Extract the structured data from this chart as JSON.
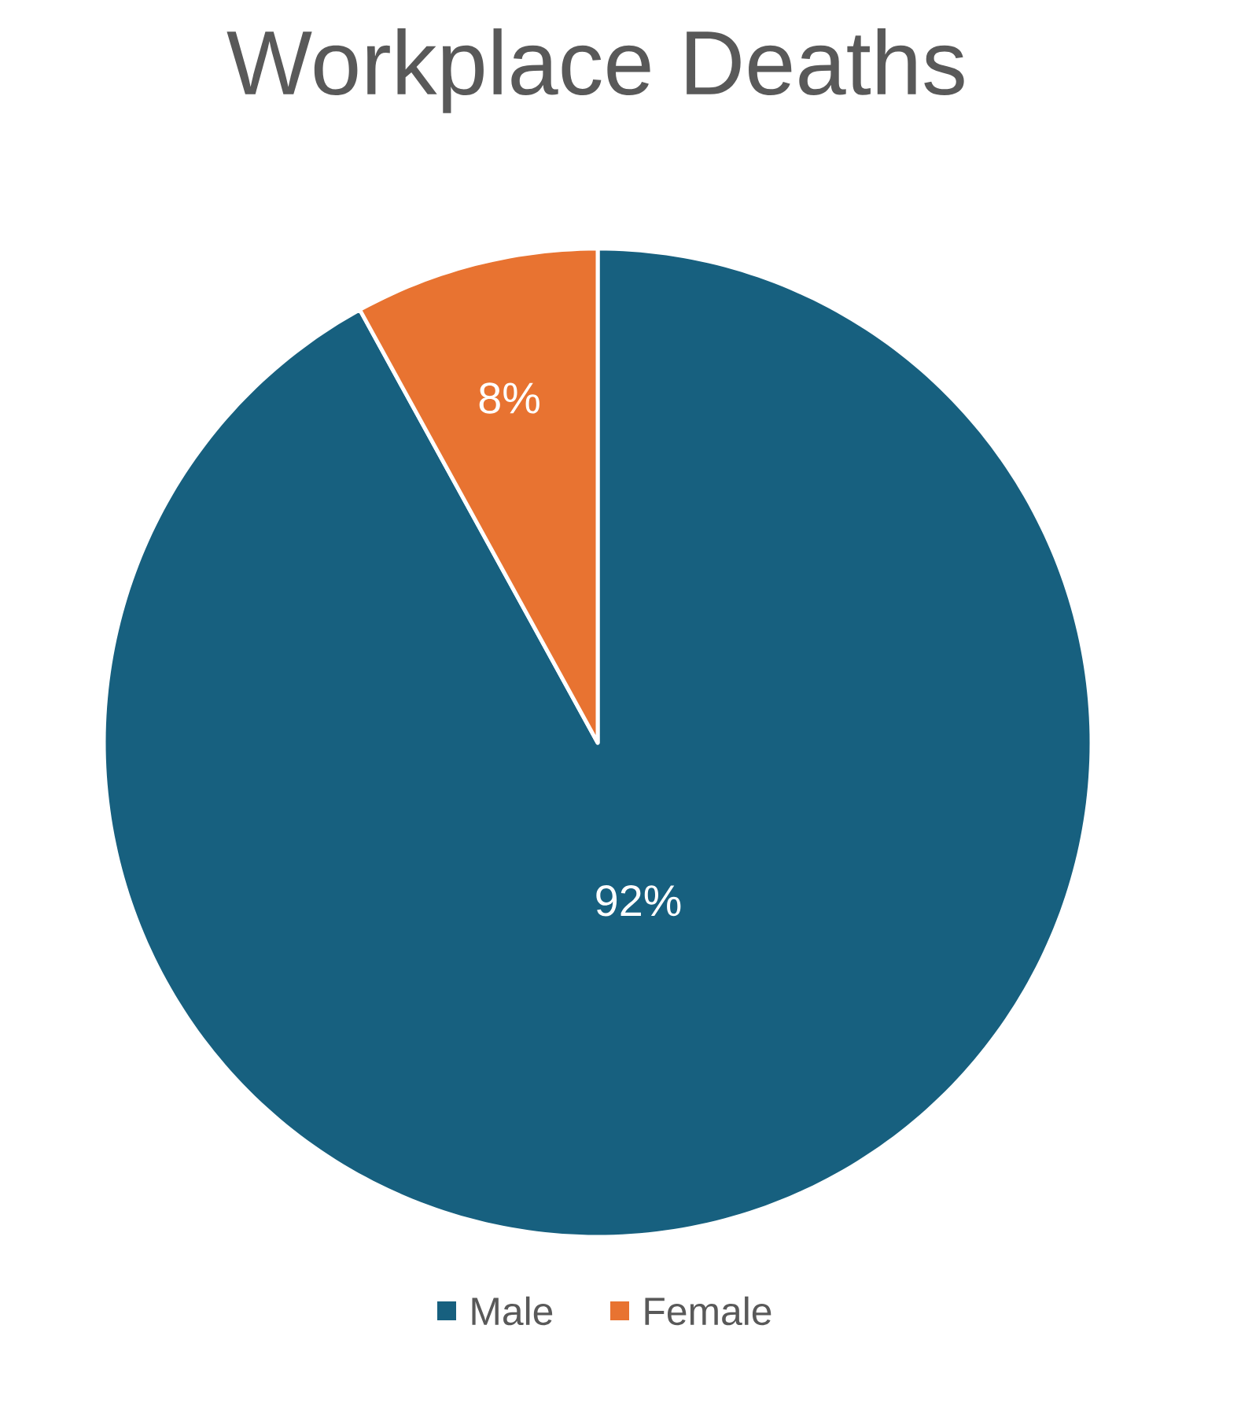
{
  "chart_data": {
    "type": "pie",
    "title": "Workplace Deaths",
    "categories": [
      "Male",
      "Female"
    ],
    "values": [
      92,
      8
    ],
    "colors": [
      "#17607f",
      "#e87331"
    ],
    "data_labels": true,
    "value_labels": [
      "92%",
      "8%"
    ],
    "legend": "bottom"
  }
}
